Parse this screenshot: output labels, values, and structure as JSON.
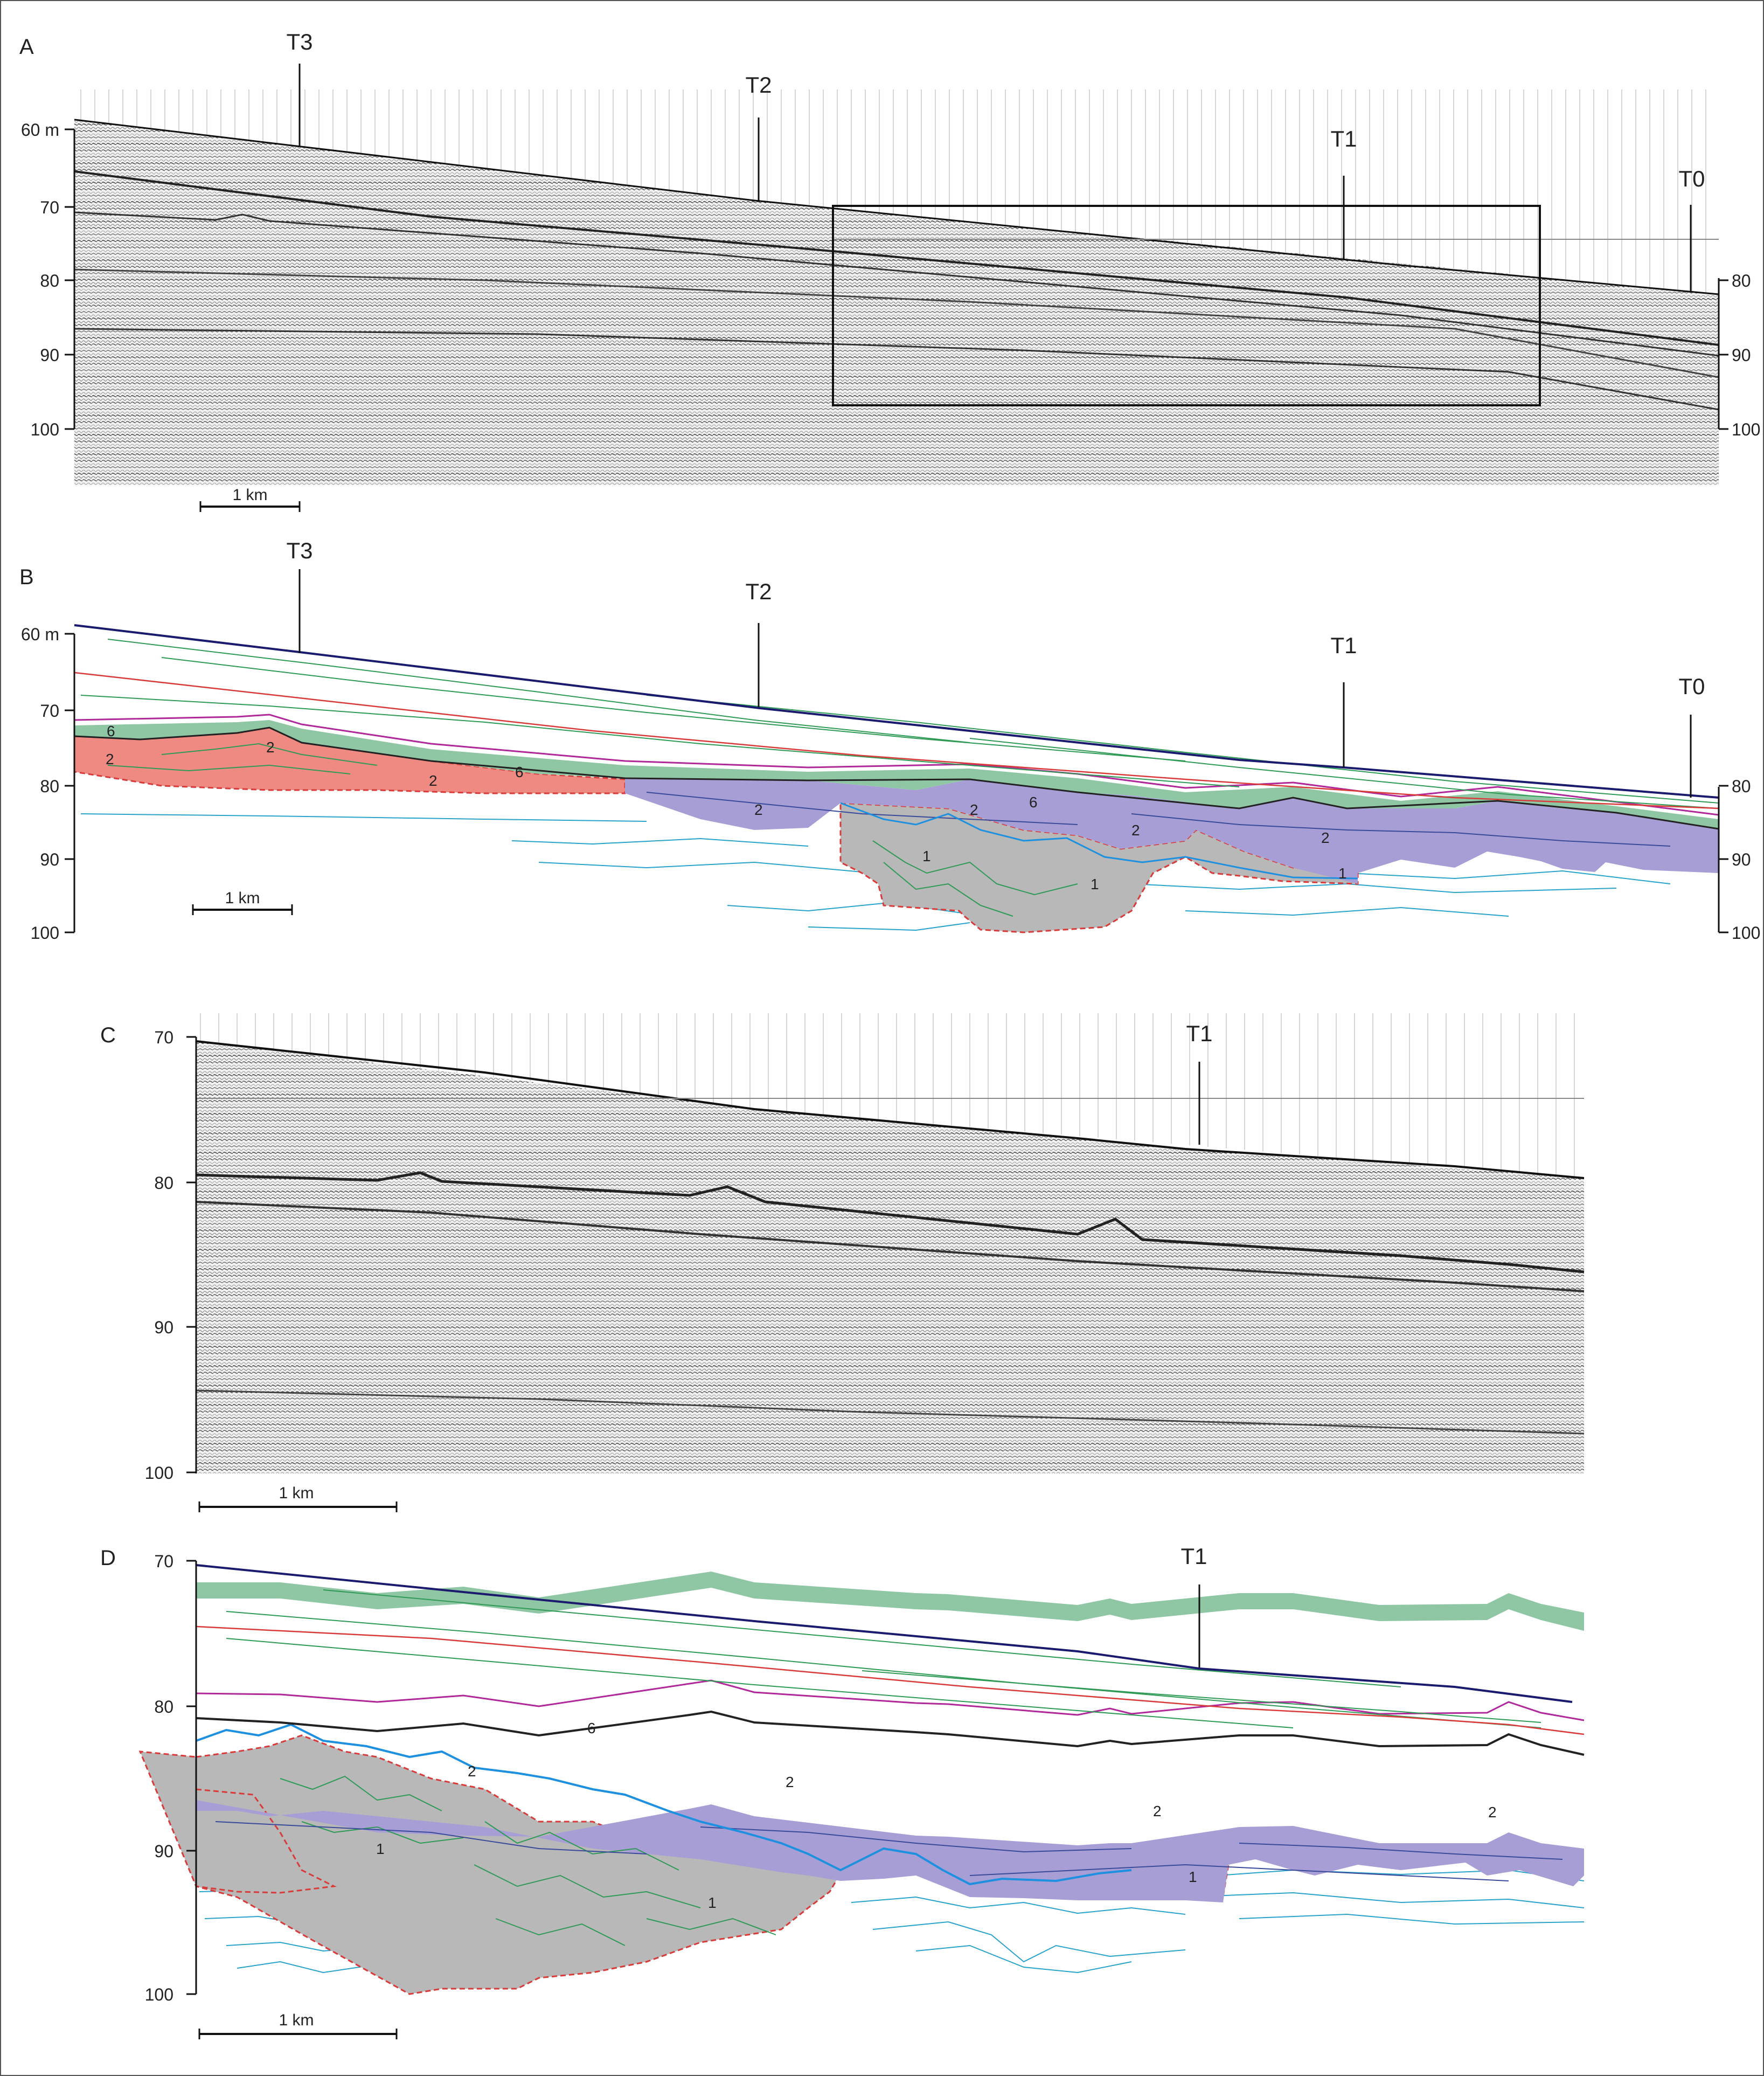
{
  "panels": {
    "a": {
      "label": "A",
      "depth_ticks": [
        "60 m",
        "70",
        "80",
        "90",
        "100"
      ],
      "right_ticks": [
        "80",
        "90",
        "100"
      ],
      "traces": [
        "T3",
        "T2",
        "T1",
        "T0"
      ],
      "scale": "1 km"
    },
    "b": {
      "label": "B",
      "depth_ticks": [
        "60 m",
        "70",
        "80",
        "90",
        "100"
      ],
      "right_ticks": [
        "80",
        "90",
        "100"
      ],
      "traces": [
        "T3",
        "T2",
        "T1",
        "T0"
      ],
      "scale": "1 km",
      "units": [
        "6",
        "2",
        "2",
        "6",
        "2",
        "2",
        "6",
        "2",
        "2",
        "2",
        "1",
        "1",
        "1"
      ]
    },
    "c": {
      "label": "C",
      "depth_ticks": [
        "70",
        "80",
        "90",
        "100"
      ],
      "traces": [
        "T1"
      ],
      "scale": "1 km"
    },
    "d": {
      "label": "D",
      "depth_ticks": [
        "70",
        "80",
        "90",
        "100"
      ],
      "traces": [
        "T1"
      ],
      "scale": "1 km",
      "units": [
        "2",
        "6",
        "2",
        "2",
        "2",
        "1",
        "1",
        "1"
      ]
    }
  },
  "colors": {
    "seafloor": "#1a1a6e",
    "horizon_red": "#d93a3a",
    "horizon_green": "#2e9a55",
    "horizon_magenta": "#b0289a",
    "horizon_blue": "#1e90e0",
    "reflector_cyan": "#2aa3cc",
    "unit6_fill": "#8fc7a5",
    "unit2_fill": "#a89ed6",
    "unit2_red_fill": "#ee8a82",
    "unit1_fill": "#b8b8b8"
  }
}
